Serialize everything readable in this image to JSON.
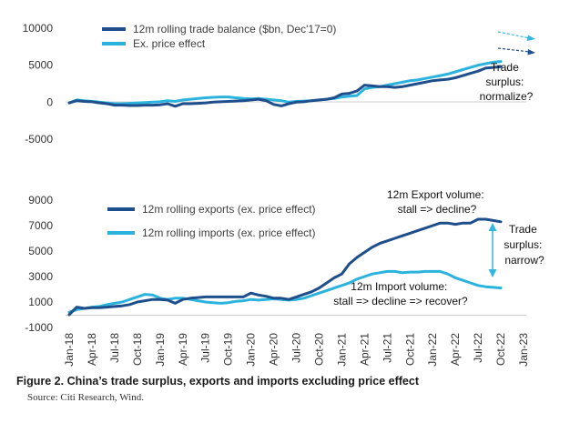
{
  "caption": "Figure 2. China’s trade surplus, exports and imports excluding price effect",
  "source": "Source: Citi Research, Wind.",
  "colors": {
    "dark": "#1f4e8c",
    "light": "#2bb3de",
    "arrow_light": "#33b6e0",
    "arrow_dark": "#1f4e8c"
  },
  "chart_data": [
    {
      "type": "line",
      "panel": "top",
      "ylim": [
        -5000,
        10000
      ],
      "yticks": [
        "10000",
        "5000",
        "0",
        "-5000"
      ],
      "ytick_values": [
        10000,
        5000,
        0,
        -5000
      ],
      "grid": false,
      "legend_position": "top-left",
      "x": [
        "2018-01",
        "2018-02",
        "2018-03",
        "2018-04",
        "2018-05",
        "2018-06",
        "2018-07",
        "2018-08",
        "2018-09",
        "2018-10",
        "2018-11",
        "2018-12",
        "2019-01",
        "2019-02",
        "2019-03",
        "2019-04",
        "2019-05",
        "2019-06",
        "2019-07",
        "2019-08",
        "2019-09",
        "2019-10",
        "2019-11",
        "2019-12",
        "2020-01",
        "2020-02",
        "2020-03",
        "2020-04",
        "2020-05",
        "2020-06",
        "2020-07",
        "2020-08",
        "2020-09",
        "2020-10",
        "2020-11",
        "2020-12",
        "2021-01",
        "2021-02",
        "2021-03",
        "2021-04",
        "2021-05",
        "2021-06",
        "2021-07",
        "2021-08",
        "2021-09",
        "2021-10",
        "2021-11",
        "2021-12",
        "2022-01",
        "2022-02",
        "2022-03",
        "2022-04",
        "2022-05",
        "2022-06",
        "2022-07",
        "2022-08",
        "2022-09",
        "2022-10"
      ],
      "series": [
        {
          "name": "12m rolling trade balance ($bn, Dec'17=0)",
          "color": "#1f4e8c",
          "values": [
            -100,
            200,
            100,
            50,
            -100,
            -200,
            -400,
            -400,
            -450,
            -450,
            -400,
            -400,
            -350,
            -200,
            -550,
            -200,
            -200,
            -150,
            -100,
            0,
            50,
            100,
            150,
            200,
            300,
            400,
            200,
            -300,
            -500,
            -200,
            0,
            50,
            200,
            300,
            400,
            600,
            1100,
            1200,
            1500,
            2300,
            2200,
            2100,
            2100,
            2000,
            2100,
            2300,
            2500,
            2700,
            2900,
            3000,
            3100,
            3300,
            3600,
            3900,
            4200,
            4600,
            4700,
            4800
          ]
        },
        {
          "name": "Ex. price effect",
          "color": "#2bb3de",
          "values": [
            -100,
            300,
            200,
            100,
            0,
            -100,
            -200,
            -200,
            -150,
            -100,
            -50,
            0,
            50,
            200,
            100,
            300,
            400,
            500,
            600,
            650,
            700,
            700,
            600,
            500,
            450,
            500,
            400,
            300,
            200,
            0,
            100,
            150,
            200,
            300,
            400,
            500,
            700,
            800,
            900,
            1800,
            2000,
            2100,
            2300,
            2500,
            2700,
            2900,
            3000,
            3200,
            3400,
            3600,
            3800,
            4100,
            4400,
            4700,
            5000,
            5200,
            5400,
            5500
          ]
        }
      ]
    },
    {
      "type": "line",
      "panel": "bottom",
      "ylim": [
        -1000,
        9000
      ],
      "yticks": [
        "9000",
        "7000",
        "5000",
        "3000",
        "1000",
        "-1000"
      ],
      "ytick_values": [
        9000,
        7000,
        5000,
        3000,
        1000,
        -1000
      ],
      "grid": false,
      "legend_position": "top-left",
      "xtick_labels": [
        "Jan-18",
        "Apr-18",
        "Jul-18",
        "Oct-18",
        "Jan-19",
        "Apr-19",
        "Jul-19",
        "Oct-19",
        "Jan-20",
        "Apr-20",
        "Jul-20",
        "Oct-20",
        "Jan-21",
        "Apr-21",
        "Jul-21",
        "Oct-21",
        "Jan-22",
        "Apr-22",
        "Jul-22",
        "Oct-22",
        "Jan-23"
      ],
      "x": [
        "2018-01",
        "2018-02",
        "2018-03",
        "2018-04",
        "2018-05",
        "2018-06",
        "2018-07",
        "2018-08",
        "2018-09",
        "2018-10",
        "2018-11",
        "2018-12",
        "2019-01",
        "2019-02",
        "2019-03",
        "2019-04",
        "2019-05",
        "2019-06",
        "2019-07",
        "2019-08",
        "2019-09",
        "2019-10",
        "2019-11",
        "2019-12",
        "2020-01",
        "2020-02",
        "2020-03",
        "2020-04",
        "2020-05",
        "2020-06",
        "2020-07",
        "2020-08",
        "2020-09",
        "2020-10",
        "2020-11",
        "2020-12",
        "2021-01",
        "2021-02",
        "2021-03",
        "2021-04",
        "2021-05",
        "2021-06",
        "2021-07",
        "2021-08",
        "2021-09",
        "2021-10",
        "2021-11",
        "2021-12",
        "2022-01",
        "2022-02",
        "2022-03",
        "2022-04",
        "2022-05",
        "2022-06",
        "2022-07",
        "2022-08",
        "2022-09",
        "2022-10"
      ],
      "series": [
        {
          "name": "12m rolling exports (ex. price effect)",
          "color": "#1f4e8c",
          "values": [
            0,
            600,
            500,
            550,
            550,
            600,
            650,
            700,
            800,
            1000,
            1100,
            1200,
            1200,
            1150,
            900,
            1200,
            1300,
            1350,
            1400,
            1400,
            1400,
            1400,
            1400,
            1400,
            1700,
            1550,
            1450,
            1300,
            1300,
            1200,
            1400,
            1600,
            1800,
            2100,
            2500,
            2900,
            3200,
            4000,
            4500,
            4900,
            5300,
            5600,
            5800,
            6000,
            6200,
            6400,
            6600,
            6800,
            7000,
            7200,
            7200,
            7100,
            7200,
            7200,
            7500,
            7500,
            7400,
            7300
          ]
        },
        {
          "name": "12m rolling imports (ex. price effect)",
          "color": "#2bb3de",
          "values": [
            200,
            400,
            500,
            600,
            650,
            800,
            900,
            1000,
            1200,
            1400,
            1600,
            1550,
            1300,
            1200,
            1300,
            1300,
            1200,
            1100,
            1000,
            950,
            900,
            950,
            1050,
            1100,
            1200,
            1150,
            1200,
            1250,
            1200,
            1150,
            1200,
            1300,
            1500,
            1700,
            1900,
            2100,
            2300,
            2500,
            2800,
            3000,
            3200,
            3300,
            3400,
            3400,
            3300,
            3350,
            3350,
            3400,
            3400,
            3400,
            3200,
            2900,
            2700,
            2500,
            2300,
            2200,
            2150,
            2100
          ]
        }
      ]
    }
  ],
  "legend_top": {
    "balance": "12m rolling trade balance ($bn, Dec'17=0)",
    "ex_price": "Ex. price effect"
  },
  "legend_bottom": {
    "exports": "12m rolling exports (ex. price effect)",
    "imports": "12m rolling imports (ex. price effect)"
  },
  "annotations": {
    "surplus_normalize": [
      "Trade",
      "surplus:",
      "normalize?"
    ],
    "export_volume": [
      "12m Export volume:",
      "stall => decline?"
    ],
    "import_volume": [
      "12m Import volume:",
      "stall => decline => recover?"
    ],
    "surplus_narrow": [
      "Trade",
      "surplus:",
      "narrow?"
    ]
  }
}
